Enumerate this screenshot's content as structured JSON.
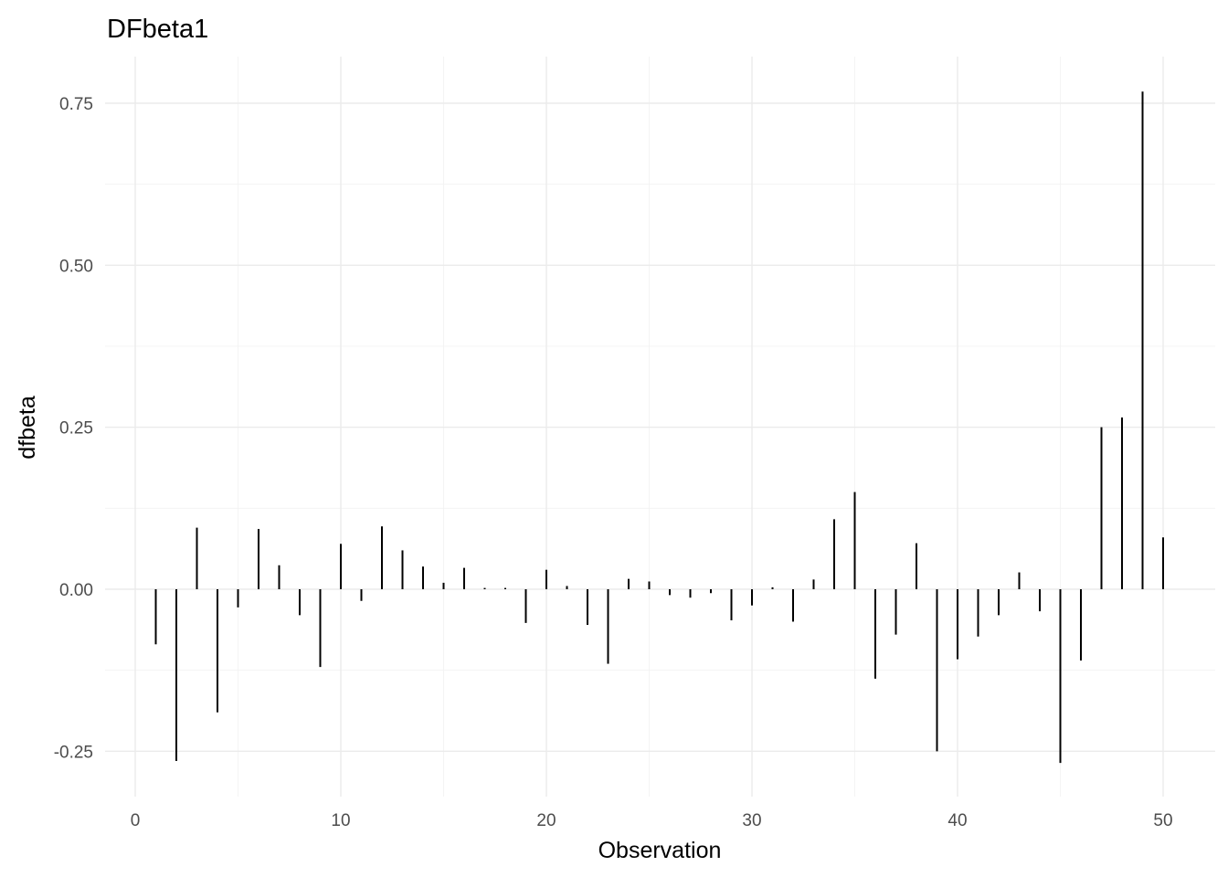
{
  "chart_data": {
    "type": "bar",
    "title": "DFbeta1",
    "xlabel": "Observation",
    "ylabel": "dfbeta",
    "xlim": [
      -1,
      52
    ],
    "ylim": [
      -0.27,
      0.77
    ],
    "xticks": [
      0,
      10,
      20,
      30,
      40,
      50
    ],
    "xtick_labels": [
      "0",
      "10",
      "20",
      "30",
      "40",
      "50"
    ],
    "yticks": [
      -0.25,
      0.0,
      0.25,
      0.5,
      0.75
    ],
    "ytick_labels": [
      "-0.25",
      "0.00",
      "0.25",
      "0.50",
      "0.75"
    ],
    "grid": true,
    "bar_color": "#000000",
    "x": [
      1,
      2,
      3,
      4,
      5,
      6,
      7,
      8,
      9,
      10,
      11,
      12,
      13,
      14,
      15,
      16,
      17,
      18,
      19,
      20,
      21,
      22,
      23,
      24,
      25,
      26,
      27,
      28,
      29,
      30,
      31,
      32,
      33,
      34,
      35,
      36,
      37,
      38,
      39,
      40,
      41,
      42,
      43,
      44,
      45,
      46,
      47,
      48,
      49,
      50
    ],
    "values": [
      -0.085,
      -0.265,
      0.095,
      -0.19,
      -0.028,
      0.093,
      0.037,
      -0.04,
      -0.12,
      0.07,
      -0.018,
      0.097,
      0.06,
      0.035,
      0.01,
      0.033,
      0.002,
      0.002,
      -0.052,
      0.03,
      0.005,
      -0.055,
      -0.115,
      0.016,
      0.012,
      -0.009,
      -0.013,
      -0.006,
      -0.048,
      -0.025,
      0.003,
      -0.05,
      0.015,
      0.108,
      0.15,
      -0.138,
      -0.07,
      0.071,
      -0.25,
      -0.108,
      -0.073,
      -0.04,
      0.026,
      -0.034,
      -0.268,
      -0.11,
      0.25,
      0.265,
      0.768,
      0.08
    ]
  }
}
